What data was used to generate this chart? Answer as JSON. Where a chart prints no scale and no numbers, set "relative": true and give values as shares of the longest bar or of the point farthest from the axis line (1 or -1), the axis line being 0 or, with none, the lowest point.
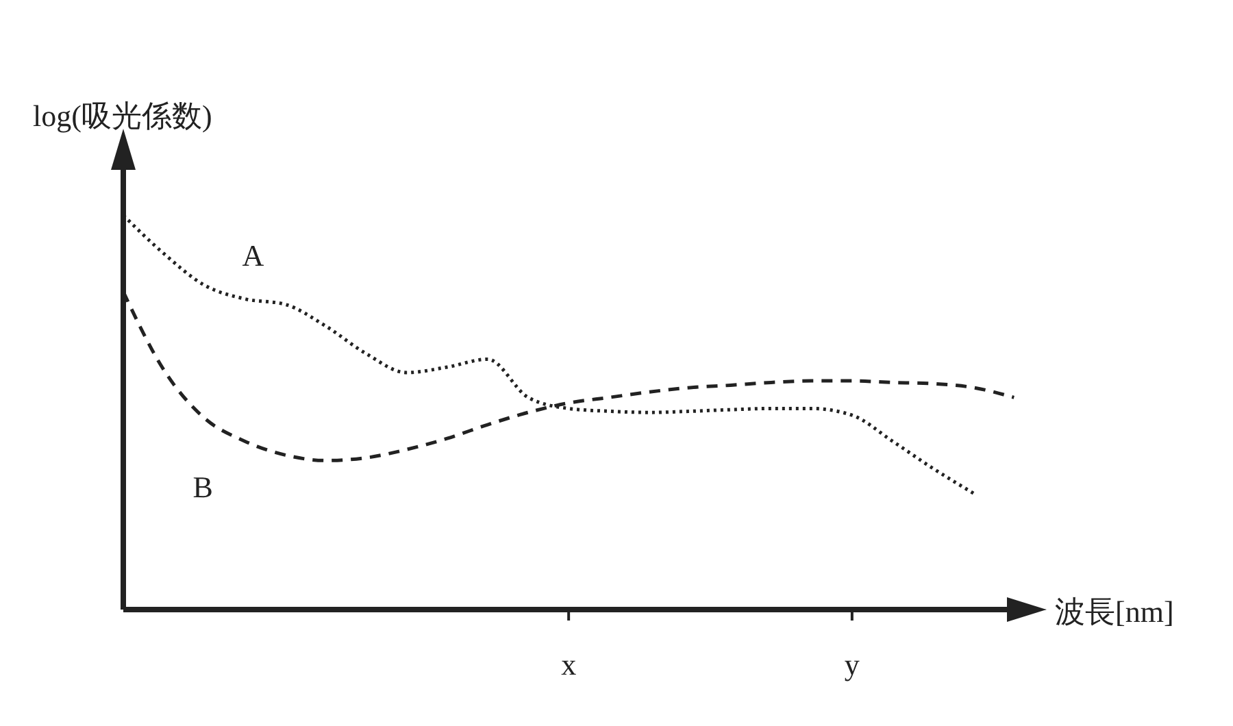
{
  "chart_data": {
    "type": "line",
    "xlabel": "波長[nm]",
    "ylabel": "log(吸光係数)",
    "relative": true,
    "tick_labels": "x",
    "legend": false,
    "marker": "none",
    "grid": false,
    "categories": [
      null,
      null,
      null,
      null,
      null,
      null,
      null,
      null,
      null,
      null,
      null,
      "x",
      null,
      null,
      null,
      null,
      null,
      null,
      "y",
      null,
      null,
      null,
      null
    ],
    "series": [
      {
        "name": "A",
        "color": "#222222",
        "line_style": "dotted",
        "values": [
          1.0,
          0.903,
          0.823,
          0.788,
          0.774,
          0.719,
          0.649,
          0.601,
          0.615,
          0.635,
          0.538,
          0.51,
          0.503,
          0.5,
          0.503,
          0.507,
          0.51,
          0.51,
          0.493,
          0.427,
          0.358,
          0.295,
          null
        ]
      },
      {
        "name": "B",
        "color": "#222222",
        "line_style": "dashed",
        "values": [
          0.806,
          0.608,
          0.486,
          0.427,
          0.392,
          0.378,
          0.385,
          0.406,
          0.434,
          0.469,
          0.5,
          0.524,
          0.538,
          0.552,
          0.563,
          0.569,
          0.576,
          0.58,
          0.58,
          0.576,
          0.573,
          0.563,
          0.538
        ]
      }
    ]
  }
}
